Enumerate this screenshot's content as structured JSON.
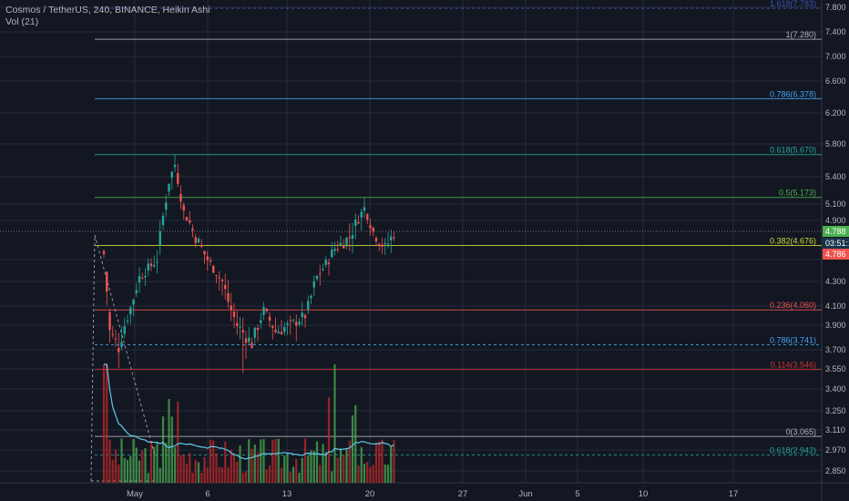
{
  "header": {
    "symbol_line": "Cosmos / TetherUS, 240, BINANCE, Heikin Ashi",
    "indicator": "Vol (21)"
  },
  "colors": {
    "background": "#131722",
    "grid": "#262b3e",
    "axis_text": "#b2b5be",
    "bull": "#26a69a",
    "bear": "#ef5350",
    "vol_bull": "#4caf50",
    "vol_bear": "#c62828",
    "vol_ma": "#5ec9e6",
    "price_label_bg": "#4caf50",
    "price_label_bg2": "#ef5350",
    "timer_label_bg": "#17324a"
  },
  "price_axis": {
    "ticks": [
      7.8,
      7.4,
      7.0,
      6.6,
      6.2,
      5.8,
      5.4,
      5.1,
      4.9,
      4.55,
      4.3,
      4.1,
      3.9,
      3.7,
      3.55,
      3.4,
      3.25,
      3.11,
      2.97,
      2.85
    ],
    "tick_labels": [
      "7.800",
      "7.400",
      "7.000",
      "6.600",
      "6.200",
      "5.800",
      "5.400",
      "5.100",
      "4.900",
      "",
      "4.300",
      "4.100",
      "3.900",
      "3.700",
      "3.550",
      "3.400",
      "3.250",
      "3.110",
      "2.970",
      "2.850"
    ],
    "current_price": "4.788",
    "countdown": "03:51:11",
    "low_label": "4.786"
  },
  "time_axis": {
    "labels": [
      "May",
      "6",
      "13",
      "20",
      "27",
      "Jun",
      "5",
      "10",
      "17"
    ]
  },
  "fib_levels": [
    {
      "label": "1.618(7.783)",
      "price": 7.783,
      "color": "#3f51b5",
      "dashed": true
    },
    {
      "label": "1(7.280)",
      "price": 7.28,
      "color": "#b2b5be",
      "dashed": false
    },
    {
      "label": "0.786(6.378)",
      "price": 6.378,
      "color": "#42a5f5",
      "dashed": false
    },
    {
      "label": "0.618(5.670)",
      "price": 5.67,
      "color": "#26a69a",
      "dashed": false
    },
    {
      "label": "0.5(5.173)",
      "price": 5.173,
      "color": "#4caf50",
      "dashed": false
    },
    {
      "label": "0.382(4.676)",
      "price": 4.676,
      "color": "#cddc39",
      "dashed": false
    },
    {
      "label": "0.236(4.060)",
      "price": 4.06,
      "color": "#ef5350",
      "dashed": false
    },
    {
      "label": "0.786(3.741)",
      "price": 3.741,
      "color": "#42a5f5",
      "dashed": true
    },
    {
      "label": "0.114(3.546)",
      "price": 3.546,
      "color": "#d32f2f",
      "dashed": false
    },
    {
      "label": "0(3.065)",
      "price": 3.065,
      "color": "#b2b5be",
      "dashed": false
    },
    {
      "label": "0.618(2.942)",
      "price": 2.942,
      "color": "#26a69a",
      "dashed": true
    }
  ],
  "chart_data": {
    "type": "candlestick",
    "title": "Cosmos / TetherUS, 240, BINANCE, Heikin Ashi",
    "ylim": [
      2.8,
      7.85
    ],
    "x_labels": [
      "May",
      "6",
      "13",
      "20",
      "27",
      "Jun",
      "5",
      "10",
      "17"
    ],
    "last_price": 4.788,
    "keypoints": [
      {
        "i": 0,
        "v": 4.6
      },
      {
        "i": 2,
        "v": 3.85
      },
      {
        "i": 5,
        "v": 3.72
      },
      {
        "i": 12,
        "v": 4.35
      },
      {
        "i": 18,
        "v": 4.55
      },
      {
        "i": 22,
        "v": 5.35
      },
      {
        "i": 24,
        "v": 5.55
      },
      {
        "i": 27,
        "v": 5.0
      },
      {
        "i": 31,
        "v": 4.75
      },
      {
        "i": 36,
        "v": 4.5
      },
      {
        "i": 40,
        "v": 4.3
      },
      {
        "i": 45,
        "v": 3.9
      },
      {
        "i": 50,
        "v": 3.75
      },
      {
        "i": 54,
        "v": 4.05
      },
      {
        "i": 58,
        "v": 3.85
      },
      {
        "i": 63,
        "v": 3.9
      },
      {
        "i": 68,
        "v": 4.0
      },
      {
        "i": 72,
        "v": 4.35
      },
      {
        "i": 78,
        "v": 4.65
      },
      {
        "i": 83,
        "v": 4.75
      },
      {
        "i": 88,
        "v": 5.05
      },
      {
        "i": 91,
        "v": 4.8
      },
      {
        "i": 95,
        "v": 4.65
      },
      {
        "i": 98,
        "v": 4.79
      }
    ]
  }
}
